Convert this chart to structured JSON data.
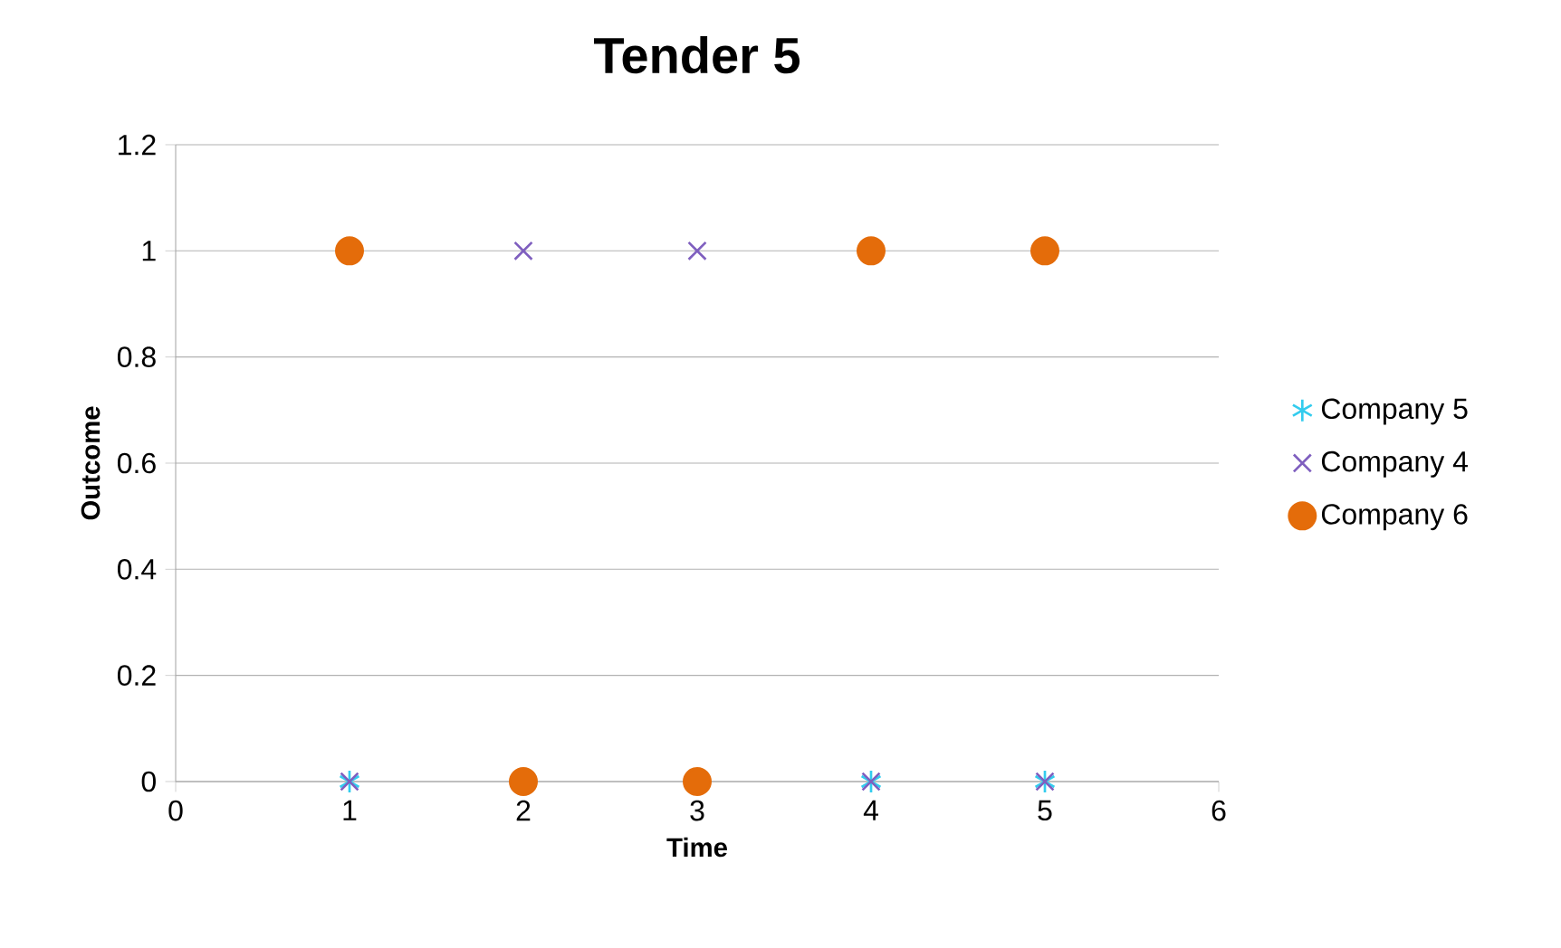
{
  "chart_data": {
    "type": "scatter",
    "title": "Tender 5",
    "xlabel": "Time",
    "ylabel": "Outcome",
    "x": [
      1,
      2,
      3,
      4,
      5
    ],
    "series": [
      {
        "name": "Company 5",
        "color": "#33ccee",
        "values": [
          0,
          null,
          null,
          0,
          0
        ]
      },
      {
        "name": "Company 4",
        "color": "#7f5fbf",
        "marker": "cross",
        "values": [
          0,
          1,
          1,
          0,
          0
        ]
      },
      {
        "name": "Company 6",
        "color": "#e46c0a",
        "marker": "circle",
        "values": [
          1,
          0,
          0,
          1,
          1
        ]
      }
    ],
    "xlim": [
      0,
      6
    ],
    "xticks": [
      0,
      1,
      2,
      3,
      4,
      5,
      6
    ],
    "ylim": [
      0,
      1.2
    ],
    "yticks": [
      0,
      0.2,
      0.4,
      0.6,
      0.8,
      1,
      1.2
    ],
    "grid": "y",
    "legend": "right"
  }
}
